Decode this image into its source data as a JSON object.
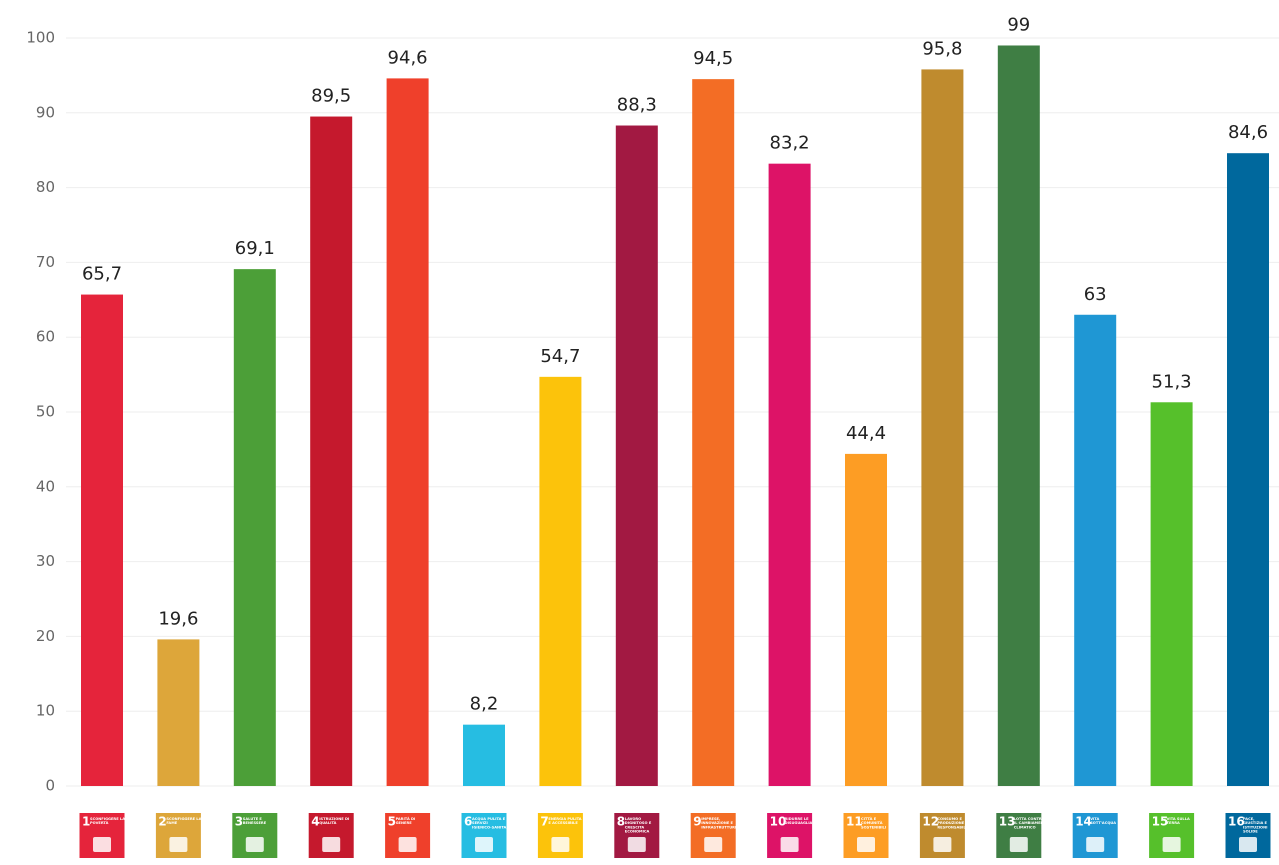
{
  "chart_data": {
    "type": "bar",
    "category_numbers": [
      1,
      2,
      3,
      4,
      5,
      6,
      7,
      8,
      9,
      10,
      11,
      12,
      13,
      14,
      15,
      16
    ],
    "categories": [
      "SCONFIGGERE LA POVERTÀ",
      "SCONFIGGERE LA FAME",
      "SALUTE E BENESSERE",
      "ISTRUZIONE DI QUALITÀ",
      "PARITÀ DI GENERE",
      "ACQUA PULITA E SERVIZI IGIENICO-SANITARI",
      "ENERGIA PULITA E ACCESSIBILE",
      "LAVORO DIGNITOSO E CRESCITA ECONOMICA",
      "IMPRESE, INNOVAZIONE E INFRASTRUTTURE",
      "RIDURRE LE DISUGUAGLIANZE",
      "CITTÀ E COMUNITÀ SOSTENIBILI",
      "CONSUMO E PRODUZIONE RESPONSABILI",
      "LOTTA CONTRO IL CAMBIAMENTO CLIMATICO",
      "VITA SOTT'ACQUA",
      "VITA SULLA TERRA",
      "PACE, GIUSTIZIA E ISTITUZIONI SOLIDE"
    ],
    "values": [
      65.7,
      19.6,
      69.1,
      89.5,
      94.6,
      8.2,
      54.7,
      88.3,
      94.5,
      83.2,
      44.4,
      95.8,
      99,
      63,
      51.3,
      84.6
    ],
    "value_labels": [
      "65,7",
      "19,6",
      "69,1",
      "89,5",
      "94,6",
      "8,2",
      "54,7",
      "88,3",
      "94,5",
      "83,2",
      "44,4",
      "95,8",
      "99",
      "63",
      "51,3",
      "84,6"
    ],
    "colors": [
      "#e5243b",
      "#dda63a",
      "#4c9f38",
      "#c5192d",
      "#ef402b",
      "#26bde2",
      "#fcc30b",
      "#a21942",
      "#f36d25",
      "#dd1367",
      "#fd9d24",
      "#bf8b2e",
      "#3f7e44",
      "#1f97d4",
      "#56c02b",
      "#00689d"
    ],
    "ylim": [
      0,
      100
    ],
    "yticks": [
      0,
      10,
      20,
      30,
      40,
      50,
      60,
      70,
      80,
      90,
      100
    ],
    "grid": true
  }
}
